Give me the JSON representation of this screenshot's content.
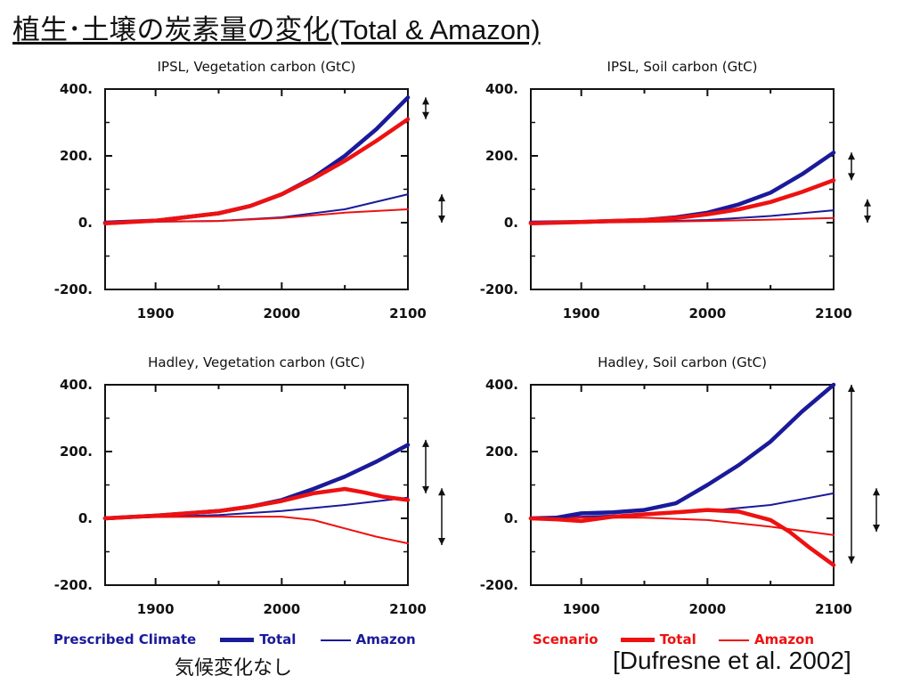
{
  "title": "植生･土壌の炭素量の変化(Total & Amazon)",
  "legend_left": {
    "label": "Prescribed Climate",
    "total_label": "Total",
    "amazon_label": "Amazon",
    "color": "#1a1a9a"
  },
  "legend_right": {
    "label": "Scenario",
    "total_label": "Total",
    "amazon_label": "Amazon",
    "color": "#ee1111"
  },
  "note_left": "気候変化なし",
  "citation": "[Dufresne et al. 2002]",
  "chart_data": [
    {
      "type": "line",
      "title": "IPSL, Vegetation carbon (GtC)",
      "xlim": [
        1860,
        2100
      ],
      "ylim": [
        -200,
        400
      ],
      "xticks": [
        1900,
        2000,
        2100
      ],
      "yticks": [
        -200,
        0,
        200,
        400
      ],
      "ytick_labels": [
        "-200.",
        "0.",
        "200.",
        "400."
      ],
      "series": [
        {
          "name": "Prescribed Climate Total",
          "color": "#1a1a9a",
          "weight": "thick",
          "x": [
            1860,
            1900,
            1950,
            1975,
            2000,
            2025,
            2050,
            2075,
            2100
          ],
          "y": [
            0,
            6,
            28,
            50,
            85,
            135,
            200,
            280,
            375
          ]
        },
        {
          "name": "Scenario Total",
          "color": "#ee1111",
          "weight": "thick",
          "x": [
            1860,
            1900,
            1950,
            1975,
            2000,
            2025,
            2050,
            2075,
            2100
          ],
          "y": [
            -2,
            6,
            28,
            50,
            85,
            132,
            185,
            245,
            310
          ]
        },
        {
          "name": "Prescribed Climate Amazon",
          "color": "#1a1a9a",
          "weight": "thin",
          "x": [
            1860,
            1900,
            1950,
            2000,
            2050,
            2100
          ],
          "y": [
            2,
            3,
            5,
            16,
            40,
            85
          ]
        },
        {
          "name": "Scenario Amazon",
          "color": "#ee1111",
          "weight": "thin",
          "x": [
            1860,
            1900,
            1950,
            2000,
            2050,
            2100
          ],
          "y": [
            0,
            3,
            5,
            14,
            30,
            40
          ]
        }
      ],
      "arrows": [
        {
          "from": 375,
          "to": 310
        },
        {
          "from": 85,
          "to": 0
        }
      ]
    },
    {
      "type": "line",
      "title": "IPSL, Soil carbon (GtC)",
      "xlim": [
        1860,
        2100
      ],
      "ylim": [
        -200,
        400
      ],
      "xticks": [
        1900,
        2000,
        2100
      ],
      "yticks": [
        -200,
        0,
        200,
        400
      ],
      "ytick_labels": [
        "-200.",
        "0.",
        "200.",
        "400."
      ],
      "series": [
        {
          "name": "Prescribed Climate Total",
          "color": "#1a1a9a",
          "weight": "thick",
          "x": [
            1860,
            1900,
            1950,
            1975,
            2000,
            2025,
            2050,
            2075,
            2100
          ],
          "y": [
            0,
            2,
            8,
            16,
            30,
            55,
            90,
            145,
            210
          ]
        },
        {
          "name": "Scenario Total",
          "color": "#ee1111",
          "weight": "thick",
          "x": [
            1860,
            1900,
            1950,
            1975,
            2000,
            2025,
            2050,
            2075,
            2100
          ],
          "y": [
            -2,
            2,
            8,
            14,
            25,
            40,
            62,
            92,
            127
          ]
        },
        {
          "name": "Prescribed Climate Amazon",
          "color": "#1a1a9a",
          "weight": "thin",
          "x": [
            1860,
            1900,
            1950,
            2000,
            2050,
            2100
          ],
          "y": [
            0,
            1,
            3,
            8,
            20,
            37
          ]
        },
        {
          "name": "Scenario Amazon",
          "color": "#ee1111",
          "weight": "thin",
          "x": [
            1860,
            1900,
            1950,
            2000,
            2050,
            2100
          ],
          "y": [
            -2,
            0,
            2,
            5,
            9,
            14
          ]
        }
      ],
      "arrows": [
        {
          "from": 210,
          "to": 127
        },
        {
          "from": 70,
          "to": 0
        }
      ]
    },
    {
      "type": "line",
      "title": "Hadley, Vegetation carbon (GtC)",
      "xlim": [
        1860,
        2100
      ],
      "ylim": [
        -200,
        400
      ],
      "xticks": [
        1900,
        2000,
        2100
      ],
      "yticks": [
        -200,
        0,
        200,
        400
      ],
      "ytick_labels": [
        "-200.",
        "0.",
        "200.",
        "400."
      ],
      "series": [
        {
          "name": "Prescribed Climate Total",
          "color": "#1a1a9a",
          "weight": "thick",
          "x": [
            1860,
            1900,
            1950,
            1975,
            2000,
            2025,
            2050,
            2075,
            2100
          ],
          "y": [
            0,
            8,
            22,
            35,
            55,
            88,
            125,
            170,
            220
          ]
        },
        {
          "name": "Scenario Total",
          "color": "#ee1111",
          "weight": "thick",
          "x": [
            1860,
            1900,
            1950,
            1975,
            2000,
            2025,
            2050,
            2065,
            2080,
            2100
          ],
          "y": [
            0,
            8,
            22,
            35,
            52,
            75,
            88,
            78,
            65,
            55
          ]
        },
        {
          "name": "Prescribed Climate Amazon",
          "color": "#1a1a9a",
          "weight": "thin",
          "x": [
            1860,
            1900,
            1950,
            2000,
            2050,
            2100
          ],
          "y": [
            0,
            4,
            10,
            22,
            40,
            62
          ]
        },
        {
          "name": "Scenario Amazon",
          "color": "#ee1111",
          "weight": "thin",
          "x": [
            1860,
            1900,
            1950,
            2000,
            2025,
            2050,
            2075,
            2100
          ],
          "y": [
            0,
            4,
            5,
            5,
            -5,
            -30,
            -55,
            -75
          ]
        }
      ],
      "arrows": [
        {
          "from": 235,
          "to": 75
        },
        {
          "from": 90,
          "to": -80
        }
      ]
    },
    {
      "type": "line",
      "title": "Hadley, Soil carbon (GtC)",
      "xlim": [
        1860,
        2100
      ],
      "ylim": [
        -200,
        400
      ],
      "xticks": [
        1900,
        2000,
        2100
      ],
      "yticks": [
        -200,
        0,
        200,
        400
      ],
      "ytick_labels": [
        "-200.",
        "0.",
        "200.",
        "400."
      ],
      "series": [
        {
          "name": "Prescribed Climate Total",
          "color": "#1a1a9a",
          "weight": "thick",
          "x": [
            1860,
            1880,
            1900,
            1925,
            1950,
            1975,
            2000,
            2025,
            2050,
            2075,
            2100
          ],
          "y": [
            0,
            2,
            15,
            18,
            25,
            45,
            100,
            160,
            230,
            320,
            400
          ]
        },
        {
          "name": "Scenario Total",
          "color": "#ee1111",
          "weight": "thick",
          "x": [
            1860,
            1880,
            1900,
            1925,
            1950,
            1975,
            2000,
            2025,
            2050,
            2065,
            2080,
            2100
          ],
          "y": [
            0,
            -3,
            -8,
            5,
            12,
            18,
            25,
            20,
            -5,
            -40,
            -85,
            -140
          ]
        },
        {
          "name": "Prescribed Climate Amazon",
          "color": "#1a1a9a",
          "weight": "thin",
          "x": [
            1860,
            1900,
            1950,
            2000,
            2050,
            2100
          ],
          "y": [
            0,
            5,
            12,
            22,
            40,
            75
          ]
        },
        {
          "name": "Scenario Amazon",
          "color": "#ee1111",
          "weight": "thin",
          "x": [
            1860,
            1900,
            1950,
            2000,
            2050,
            2100
          ],
          "y": [
            0,
            2,
            2,
            -5,
            -25,
            -50
          ]
        }
      ],
      "arrows": [
        {
          "from": 400,
          "to": -135
        },
        {
          "from": 90,
          "to": -40
        }
      ]
    }
  ]
}
